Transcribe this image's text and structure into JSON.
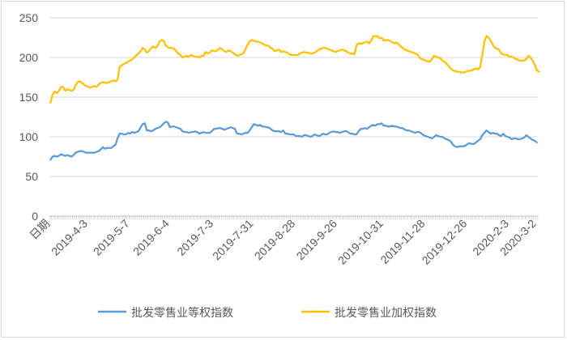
{
  "chart_data": {
    "type": "line",
    "title": "",
    "xlabel": "",
    "ylabel": "",
    "ylim": [
      0,
      250
    ],
    "y_ticks": [
      "0",
      "50",
      "100",
      "150",
      "200",
      "250"
    ],
    "x_tick_labels": [
      "日期",
      "2019-4-3",
      "2019-5-7",
      "2019-6-4",
      "2019-7-3",
      "2019-7-31",
      "2019-8-28",
      "2019-9-26",
      "2019-10-31",
      "2019-11-28",
      "2019-12-26",
      "2020-2-3",
      "2020-3-2"
    ],
    "grid": "horizontal",
    "legend_position": "bottom",
    "series": [
      {
        "name": "批发零售业等权指数",
        "color": "#5B9BD5",
        "values": [
          71,
          75,
          76,
          75,
          76,
          78,
          77,
          76,
          77,
          76,
          75,
          77,
          80,
          81,
          82,
          82,
          81,
          80,
          80,
          80,
          80,
          80,
          81,
          82,
          84,
          87,
          85,
          86,
          86,
          86,
          88,
          90,
          98,
          104,
          104,
          103,
          103,
          105,
          104,
          106,
          105,
          106,
          107,
          112,
          116,
          117,
          108,
          108,
          107,
          108,
          110,
          111,
          112,
          114,
          117,
          119,
          118,
          112,
          113,
          113,
          112,
          111,
          110,
          107,
          106,
          106,
          105,
          106,
          106,
          107,
          106,
          104,
          105,
          106,
          105,
          105,
          105,
          107,
          110,
          110,
          111,
          111,
          110,
          109,
          110,
          111,
          112,
          111,
          110,
          104,
          104,
          103,
          104,
          105,
          105,
          108,
          112,
          116,
          115,
          114,
          115,
          113,
          113,
          112,
          112,
          110,
          108,
          107,
          107,
          107,
          106,
          108,
          104,
          104,
          103,
          103,
          103,
          101,
          101,
          101,
          100,
          102,
          102,
          101,
          100,
          101,
          103,
          102,
          101,
          102,
          104,
          103,
          103,
          105,
          106,
          107,
          106,
          106,
          105,
          106,
          107,
          107,
          106,
          104,
          104,
          103,
          103,
          107,
          110,
          110,
          111,
          110,
          112,
          114,
          115,
          114,
          116,
          116,
          117,
          114,
          114,
          113,
          113,
          114,
          113,
          113,
          112,
          111,
          111,
          109,
          108,
          108,
          107,
          106,
          105,
          106,
          106,
          104,
          102,
          101,
          100,
          99,
          98,
          100,
          102,
          101,
          100,
          100,
          98,
          97,
          96,
          94,
          90,
          88,
          87,
          88,
          88,
          88,
          89,
          91,
          92,
          91,
          91,
          93,
          95,
          97,
          102,
          105,
          108,
          106,
          104,
          105,
          104,
          104,
          102,
          101,
          104,
          101,
          100,
          99,
          97,
          98,
          98,
          97,
          97,
          98,
          99,
          102,
          100,
          98,
          96,
          95,
          93
        ]
      },
      {
        "name": "批发零售业加权指数",
        "color": "#FFC000",
        "values": [
          143,
          153,
          157,
          155,
          158,
          163,
          163,
          158,
          160,
          159,
          158,
          159,
          165,
          169,
          170,
          168,
          166,
          164,
          163,
          162,
          163,
          164,
          163,
          166,
          168,
          169,
          168,
          168,
          169,
          170,
          171,
          170,
          172,
          188,
          190,
          192,
          193,
          195,
          196,
          198,
          200,
          203,
          205,
          208,
          212,
          210,
          206,
          208,
          212,
          214,
          212,
          214,
          220,
          222,
          221,
          215,
          213,
          212,
          212,
          211,
          208,
          205,
          203,
          200,
          201,
          202,
          201,
          203,
          202,
          201,
          201,
          200,
          202,
          202,
          207,
          205,
          206,
          209,
          208,
          208,
          210,
          212,
          210,
          208,
          207,
          209,
          208,
          206,
          204,
          202,
          203,
          204,
          205,
          210,
          216,
          220,
          222,
          221,
          220,
          220,
          219,
          218,
          216,
          215,
          215,
          212,
          211,
          208,
          209,
          210,
          207,
          208,
          207,
          206,
          204,
          203,
          203,
          203,
          203,
          205,
          206,
          207,
          206,
          206,
          205,
          205,
          206,
          208,
          210,
          211,
          212,
          212,
          211,
          210,
          209,
          208,
          207,
          208,
          209,
          210,
          209,
          208,
          206,
          205,
          205,
          204,
          215,
          218,
          217,
          218,
          219,
          220,
          218,
          221,
          227,
          227,
          227,
          224,
          225,
          221,
          222,
          222,
          221,
          219,
          218,
          219,
          217,
          214,
          212,
          210,
          209,
          208,
          207,
          206,
          205,
          204,
          200,
          198,
          197,
          196,
          195,
          195,
          198,
          202,
          201,
          200,
          199,
          196,
          195,
          192,
          189,
          186,
          184,
          183,
          182,
          182,
          181,
          181,
          182,
          183,
          183,
          184,
          185,
          186,
          185,
          188,
          203,
          220,
          227,
          225,
          221,
          216,
          212,
          211,
          210,
          205,
          204,
          203,
          203,
          201,
          201,
          200,
          198,
          197,
          196,
          196,
          196,
          198,
          202,
          200,
          196,
          191,
          184,
          182
        ]
      }
    ]
  }
}
